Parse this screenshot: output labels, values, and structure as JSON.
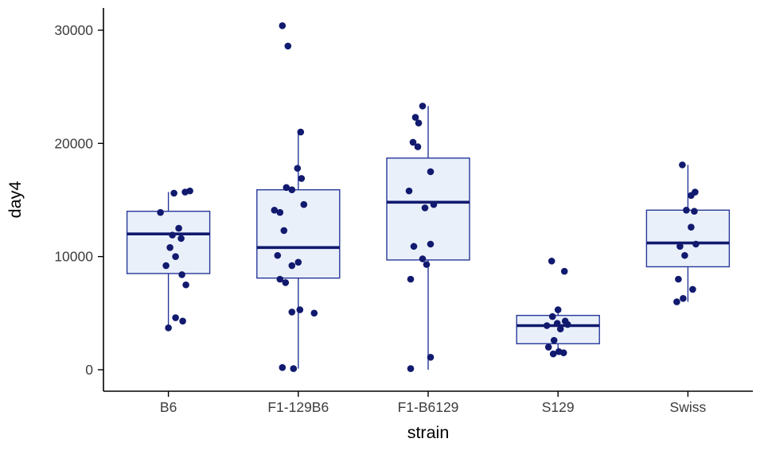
{
  "chart_data": {
    "type": "boxplot",
    "title": "",
    "xlabel": "strain",
    "ylabel": "day4",
    "ylim": [
      0,
      30000
    ],
    "y_ticks": [
      0,
      10000,
      20000,
      30000
    ],
    "grid": false,
    "legend": "none",
    "categories": [
      "B6",
      "F1-129B6",
      "F1-B6129",
      "S129",
      "Swiss"
    ],
    "series": [
      {
        "name": "B6",
        "box": {
          "q1": 8500,
          "median": 12000,
          "q3": 14000,
          "whisker_low": 3700,
          "whisker_high": 15700
        },
        "points": [
          [
            -10,
            13900
          ],
          [
            7,
            15600
          ],
          [
            21,
            15700
          ],
          [
            27,
            15800
          ],
          [
            13,
            12500
          ],
          [
            5,
            11900
          ],
          [
            16,
            11600
          ],
          [
            2,
            10800
          ],
          [
            9,
            10000
          ],
          [
            -3,
            9200
          ],
          [
            17,
            8400
          ],
          [
            22,
            7500
          ],
          [
            9,
            4600
          ],
          [
            18,
            4300
          ],
          [
            0,
            3700
          ]
        ]
      },
      {
        "name": "F1-129B6",
        "box": {
          "q1": 8100,
          "median": 10800,
          "q3": 15900,
          "whisker_low": 100,
          "whisker_high": 21000
        },
        "points": [
          [
            -20,
            30400
          ],
          [
            -13,
            28600
          ],
          [
            3,
            21000
          ],
          [
            -1,
            17800
          ],
          [
            4,
            16900
          ],
          [
            -15,
            16100
          ],
          [
            -8,
            15900
          ],
          [
            7,
            14600
          ],
          [
            -30,
            14100
          ],
          [
            -23,
            13900
          ],
          [
            -18,
            12300
          ],
          [
            -26,
            10100
          ],
          [
            0,
            9500
          ],
          [
            -8,
            9200
          ],
          [
            -23,
            8000
          ],
          [
            -16,
            7700
          ],
          [
            2,
            5300
          ],
          [
            -8,
            5100
          ],
          [
            20,
            5000
          ],
          [
            -20,
            200
          ],
          [
            -6,
            100
          ]
        ]
      },
      {
        "name": "F1-B6129",
        "box": {
          "q1": 9700,
          "median": 14800,
          "q3": 18700,
          "whisker_low": 0,
          "whisker_high": 23300
        },
        "points": [
          [
            -7,
            23300
          ],
          [
            -16,
            22300
          ],
          [
            -12,
            21800
          ],
          [
            -19,
            20100
          ],
          [
            -13,
            19700
          ],
          [
            3,
            17500
          ],
          [
            -24,
            15800
          ],
          [
            7,
            14600
          ],
          [
            -4,
            14300
          ],
          [
            3,
            11100
          ],
          [
            -18,
            10900
          ],
          [
            -7,
            9800
          ],
          [
            -2,
            9300
          ],
          [
            -22,
            8000
          ],
          [
            3,
            1100
          ],
          [
            -22,
            100
          ]
        ]
      },
      {
        "name": "S129",
        "box": {
          "q1": 2300,
          "median": 3900,
          "q3": 4800,
          "whisker_low": 1400,
          "whisker_high": 5300
        },
        "points": [
          [
            -8,
            9600
          ],
          [
            8,
            8700
          ],
          [
            0,
            5300
          ],
          [
            -7,
            4700
          ],
          [
            9,
            4300
          ],
          [
            -1,
            4100
          ],
          [
            12,
            4000
          ],
          [
            -14,
            3900
          ],
          [
            3,
            3600
          ],
          [
            -5,
            2600
          ],
          [
            -12,
            2000
          ],
          [
            1,
            1600
          ],
          [
            7,
            1500
          ],
          [
            -6,
            1400
          ]
        ]
      },
      {
        "name": "Swiss",
        "box": {
          "q1": 9100,
          "median": 11200,
          "q3": 14100,
          "whisker_low": 6000,
          "whisker_high": 18100
        },
        "points": [
          [
            -7,
            18100
          ],
          [
            9,
            15700
          ],
          [
            4,
            15400
          ],
          [
            -2,
            14100
          ],
          [
            8,
            14000
          ],
          [
            4,
            12600
          ],
          [
            -10,
            10900
          ],
          [
            10,
            11100
          ],
          [
            -4,
            10100
          ],
          [
            -12,
            8000
          ],
          [
            6,
            7100
          ],
          [
            -6,
            6300
          ],
          [
            -14,
            6000
          ]
        ]
      }
    ],
    "colors": {
      "box_fill": "#EAF0FA",
      "box_border": "#27389A",
      "median": "#111A6E",
      "point": "#111A6E",
      "whisker": "#27389A",
      "axis_line": "#000000",
      "tick_label": "#3c3c3c",
      "axis_title": "#000000"
    }
  }
}
